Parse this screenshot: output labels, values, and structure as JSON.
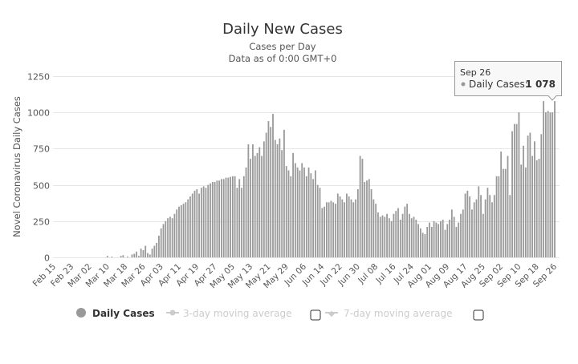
{
  "chart_data": {
    "type": "bar",
    "title": "Daily New Cases",
    "subtitle": [
      "Cases per Day",
      "Data as of 0:00 GMT+0"
    ],
    "xlabel": "",
    "ylabel": "Novel Coronavirus Daily Cases",
    "ylim": [
      0,
      1250
    ],
    "yticks": [
      "0",
      "250",
      "500",
      "750",
      "1000",
      "1250"
    ],
    "grid": true,
    "x_start": "Feb 15",
    "x_end": "Sep 26",
    "xtick_every_days": 8,
    "xticks": [
      "Feb 15",
      "Feb 23",
      "Mar 02",
      "Mar 10",
      "Mar 18",
      "Mar 26",
      "Apr 03",
      "Apr 11",
      "Apr 19",
      "Apr 27",
      "May 05",
      "May 13",
      "May 21",
      "May 29",
      "Jun 06",
      "Jun 14",
      "Jun 22",
      "Jun 30",
      "Jul 08",
      "Jul 16",
      "Jul 24",
      "Aug 01",
      "Aug 09",
      "Aug 17",
      "Aug 25",
      "Sep 02",
      "Sep 10",
      "Sep 18",
      "Sep 26"
    ],
    "series": [
      {
        "name": "Daily Cases",
        "color": "#999999",
        "values": [
          0,
          0,
          0,
          0,
          0,
          0,
          0,
          0,
          0,
          0,
          0,
          0,
          0,
          0,
          0,
          0,
          0,
          0,
          0,
          0,
          0,
          0,
          0,
          0,
          10,
          0,
          5,
          0,
          0,
          0,
          10,
          15,
          0,
          5,
          0,
          20,
          25,
          40,
          10,
          60,
          50,
          80,
          30,
          20,
          60,
          80,
          100,
          150,
          200,
          230,
          250,
          270,
          280,
          270,
          300,
          330,
          350,
          360,
          370,
          380,
          400,
          420,
          440,
          460,
          470,
          440,
          480,
          490,
          480,
          500,
          510,
          520,
          520,
          530,
          530,
          540,
          540,
          550,
          550,
          555,
          560,
          560,
          480,
          540,
          480,
          560,
          620,
          780,
          680,
          780,
          700,
          720,
          760,
          700,
          800,
          860,
          940,
          900,
          990,
          810,
          780,
          820,
          740,
          880,
          630,
          600,
          560,
          720,
          650,
          620,
          600,
          650,
          620,
          560,
          620,
          580,
          540,
          600,
          500,
          480,
          340,
          350,
          380,
          380,
          390,
          380,
          370,
          440,
          420,
          400,
          380,
          440,
          420,
          400,
          380,
          400,
          470,
          700,
          680,
          520,
          530,
          540,
          470,
          400,
          370,
          310,
          280,
          290,
          280,
          300,
          270,
          250,
          300,
          320,
          340,
          260,
          300,
          350,
          370,
          300,
          270,
          280,
          260,
          230,
          200,
          170,
          160,
          210,
          240,
          210,
          250,
          240,
          230,
          250,
          260,
          190,
          230,
          260,
          330,
          280,
          210,
          240,
          300,
          330,
          440,
          460,
          420,
          330,
          380,
          400,
          490,
          430,
          300,
          400,
          480,
          430,
          380,
          430,
          560,
          560,
          730,
          610,
          610,
          700,
          430,
          870,
          920,
          920,
          1000,
          640,
          770,
          620,
          840,
          860,
          700,
          800,
          670,
          680,
          850,
          1078,
          1000,
          1010,
          1000,
          1000,
          1078
        ]
      },
      {
        "name": "3-day moving average",
        "visible": false,
        "color": "#cccccc"
      },
      {
        "name": "7-day moving average",
        "visible": false,
        "color": "#cccccc"
      }
    ],
    "legend_position": "bottom-center",
    "tooltip": {
      "date": "Sep 26",
      "label": "Daily Cases:",
      "value": "1 078"
    }
  }
}
